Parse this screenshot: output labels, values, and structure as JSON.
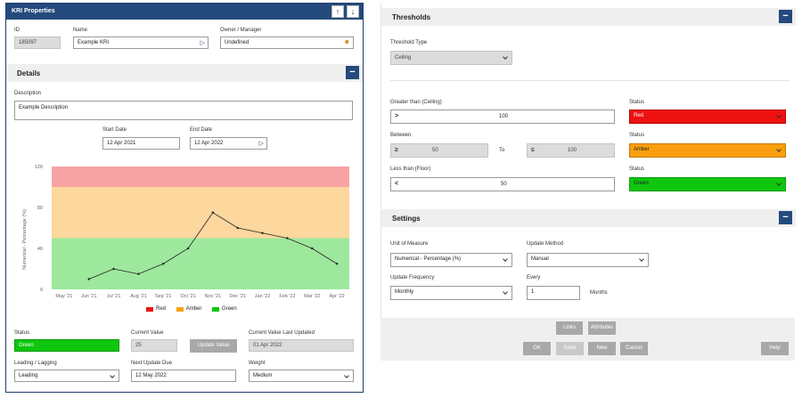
{
  "kri": {
    "window_title": "KRI Properties",
    "up_icon": "↑",
    "down_icon": "↓",
    "id_label": "ID",
    "id_value": "185097",
    "name_label": "Name",
    "name_value": "Example KRI",
    "owner_label": "Owner / Manager",
    "owner_value": "Undefined",
    "details_title": "Details",
    "collapse_icon": "−",
    "description_label": "Description",
    "description_value": "Example Description",
    "start_date_label": "Start Date",
    "start_date_value": "12 Apr 2021",
    "end_date_label": "End Date",
    "end_date_value": "12 Apr 2022",
    "status_label": "Status",
    "status_value": "Green",
    "current_value_label": "Current Value",
    "current_value": "25",
    "update_value_button": "Update Value",
    "last_updated_label": "Current Value Last Updated",
    "last_updated_value": "01 Apr 2022",
    "leading_label": "Leading / Lagging",
    "leading_value": "Leading",
    "next_update_label": "Next Update Due",
    "next_update_value": "12 May 2022",
    "weight_label": "Weight",
    "weight_value": "Medium"
  },
  "thresholds": {
    "title": "Thresholds",
    "collapse_icon": "−",
    "type_label": "Threshold Type",
    "type_value": "Ceiling",
    "greater_label": "Greater than (Ceiling)",
    "greater_symbol": ">",
    "greater_value": "100",
    "status_label": "Status",
    "red_value": "Red",
    "between_label": "Between",
    "between_symbol_low": "≥",
    "between_low": "50",
    "to_label": "To",
    "between_symbol_high": "≤",
    "between_high": "100",
    "amber_value": "Amber",
    "less_label": "Less than (Floor)",
    "less_symbol": "<",
    "less_value": "50",
    "green_value": "Green"
  },
  "settings": {
    "title": "Settings",
    "collapse_icon": "−",
    "unit_label": "Unit of Measure",
    "unit_value": "Numerical - Percentage (%)",
    "method_label": "Update Method",
    "method_value": "Manual",
    "frequency_label": "Update Frequency",
    "frequency_value": "Monthly",
    "every_label": "Every",
    "every_value": "1",
    "months_label": "Months"
  },
  "footer": {
    "links": "Links",
    "attributes": "Attributes",
    "ok": "OK",
    "save": "Save",
    "new": "New",
    "cancel": "Cancel",
    "help": "Help"
  },
  "colors": {
    "header_blue": "#244a7d",
    "red": "#ee1111",
    "amber": "#f99f0f",
    "green": "#0fc60f"
  },
  "chart_data": {
    "type": "line",
    "ylabel": "Numerical - Percentage (%)",
    "xlabel": "",
    "ylim": [
      0,
      120
    ],
    "yticks": [
      0,
      40,
      80,
      120
    ],
    "categories": [
      "May '21",
      "Jun '21",
      "Jul '21",
      "Aug '21",
      "Sep '21",
      "Oct '21",
      "Nov '21",
      "Dec '21",
      "Jan '22",
      "Feb '22",
      "Mar '22",
      "Apr '22"
    ],
    "series": [
      {
        "values": [
          null,
          10,
          20,
          15,
          25,
          40,
          75,
          60,
          55,
          50,
          40,
          25
        ]
      }
    ],
    "bands": [
      {
        "name": "Red",
        "from": 100,
        "to": 120,
        "color": "#f7a3a3"
      },
      {
        "name": "Amber",
        "from": 50,
        "to": 100,
        "color": "#fcd79e"
      },
      {
        "name": "Green",
        "from": 0,
        "to": 50,
        "color": "#9de89d"
      }
    ],
    "legend": [
      {
        "name": "Red",
        "color": "#ee1111"
      },
      {
        "name": "Amber",
        "color": "#f99f0f"
      },
      {
        "name": "Green",
        "color": "#0fc60f"
      }
    ],
    "legend_position": "bottom",
    "grid": false
  }
}
